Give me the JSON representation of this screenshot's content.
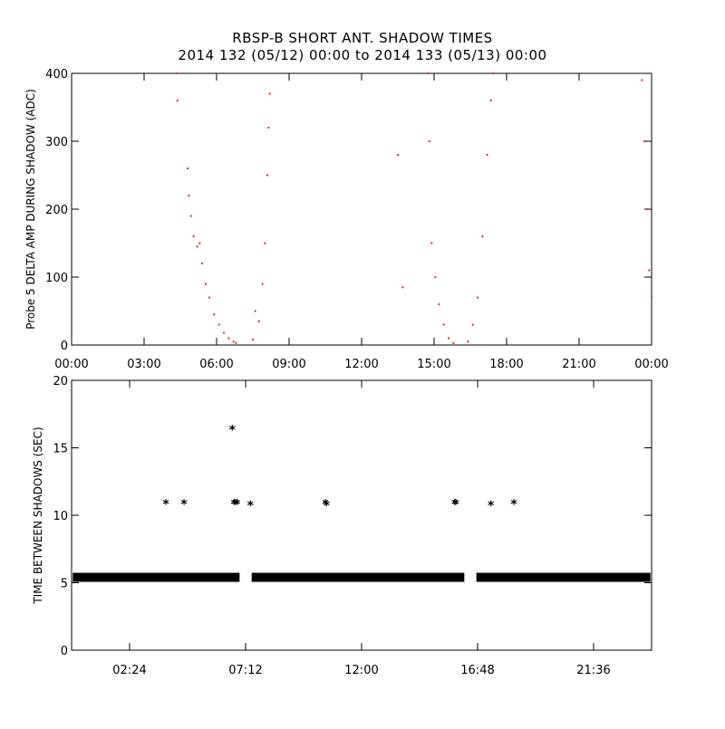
{
  "title_line1": "RBSP-B SHORT ANT. SHADOW TIMES",
  "title_line2": "2014 132 (05/12) 00:00 to 2014 133 (05/13) 00:00",
  "colors": {
    "series_top": "#e8210c",
    "series_bottom": "#000000",
    "axis": "#000000",
    "background": "#ffffff"
  },
  "chart_data": [
    {
      "type": "scatter",
      "ylabel": "Probe 5 DELTA AMP DURING SHADOW (ADC)",
      "xlabel": "",
      "xlim_hours": [
        0,
        24
      ],
      "ylim": [
        0,
        400
      ],
      "x_ticks": [
        "00:00",
        "03:00",
        "06:00",
        "09:00",
        "12:00",
        "15:00",
        "18:00",
        "21:00",
        "00:00"
      ],
      "x_tick_hours": [
        0,
        3,
        6,
        9,
        12,
        15,
        18,
        21,
        24
      ],
      "y_ticks": [
        0,
        100,
        200,
        300,
        400
      ],
      "grid": false,
      "series": [
        {
          "x_hours": [
            4.35,
            4.38,
            4.8,
            4.85,
            4.95,
            5.05,
            5.2,
            5.3,
            5.4,
            5.55,
            5.7,
            5.9,
            6.1,
            6.3,
            6.5,
            6.7,
            6.8,
            7.5,
            7.6,
            7.75,
            7.9,
            8.0,
            8.1,
            8.15,
            8.2,
            13.5,
            13.7,
            14.75,
            14.8,
            14.9,
            15.05,
            15.2,
            15.4,
            15.6,
            15.8,
            16.4,
            16.6,
            16.8,
            17.0,
            17.2,
            17.35,
            17.45,
            23.6,
            23.7,
            23.8,
            23.9,
            24.0
          ],
          "y": [
            400,
            360,
            260,
            220,
            190,
            160,
            145,
            150,
            120,
            90,
            70,
            45,
            30,
            18,
            10,
            5,
            3,
            8,
            50,
            35,
            90,
            150,
            250,
            320,
            370,
            280,
            85,
            400,
            300,
            150,
            100,
            60,
            30,
            10,
            3,
            5,
            30,
            70,
            160,
            280,
            360,
            400,
            390,
            300,
            200,
            110,
            70
          ]
        }
      ]
    },
    {
      "type": "scatter",
      "ylabel": "TIME BETWEEN SHADOWS (SEC)",
      "xlabel": "",
      "xlim_hours": [
        0,
        24
      ],
      "ylim": [
        0,
        20
      ],
      "x_ticks": [
        "02:24",
        "07:12",
        "12:00",
        "16:48",
        "21:36"
      ],
      "x_tick_hours": [
        2.4,
        7.2,
        12.0,
        16.8,
        21.6
      ],
      "y_ticks": [
        0,
        5,
        10,
        15,
        20
      ],
      "grid": false,
      "series": [
        {
          "baseline_value": 5.4,
          "baseline_ranges_hours": [
            [
              0.05,
              6.95
            ],
            [
              7.45,
              16.25
            ],
            [
              16.75,
              23.95
            ]
          ],
          "x_hours": [
            3.9,
            4.65,
            6.65,
            6.72,
            6.78,
            6.85,
            7.4,
            10.5,
            10.55,
            15.85,
            15.9,
            17.35,
            18.3
          ],
          "y": [
            10.9,
            10.9,
            16.4,
            10.9,
            10.9,
            10.9,
            10.8,
            10.9,
            10.8,
            10.9,
            10.9,
            10.8,
            10.9
          ]
        }
      ]
    }
  ]
}
